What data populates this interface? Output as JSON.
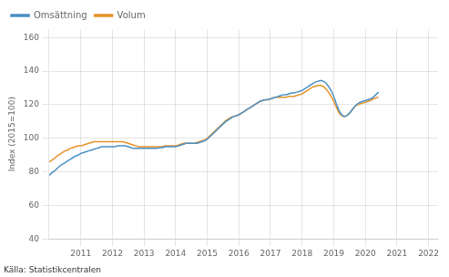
{
  "chart_data": {
    "type": "line",
    "ylabel": "Index (2015=100)",
    "source": "Källa: Statistikcentralen",
    "x": [
      2010,
      2010.083333,
      2010.166667,
      2010.25,
      2010.333333,
      2010.416667,
      2010.5,
      2010.583333,
      2010.666667,
      2010.75,
      2010.833333,
      2010.916667,
      2011,
      2011.083333,
      2011.166667,
      2011.25,
      2011.333333,
      2011.416667,
      2011.5,
      2011.583333,
      2011.666667,
      2011.75,
      2011.833333,
      2011.916667,
      2012,
      2012.083333,
      2012.166667,
      2012.25,
      2012.333333,
      2012.416667,
      2012.5,
      2012.583333,
      2012.666667,
      2012.75,
      2012.833333,
      2012.916667,
      2013,
      2013.083333,
      2013.166667,
      2013.25,
      2013.333333,
      2013.416667,
      2013.5,
      2013.583333,
      2013.666667,
      2013.75,
      2013.833333,
      2013.916667,
      2014,
      2014.083333,
      2014.166667,
      2014.25,
      2014.333333,
      2014.416667,
      2014.5,
      2014.583333,
      2014.666667,
      2014.75,
      2014.833333,
      2014.916667,
      2015,
      2015.083333,
      2015.166667,
      2015.25,
      2015.333333,
      2015.416667,
      2015.5,
      2015.583333,
      2015.666667,
      2015.75,
      2015.833333,
      2015.916667,
      2016,
      2016.083333,
      2016.166667,
      2016.25,
      2016.333333,
      2016.416667,
      2016.5,
      2016.583333,
      2016.666667,
      2016.75,
      2016.833333,
      2016.916667,
      2017,
      2017.083333,
      2017.166667,
      2017.25,
      2017.333333,
      2017.416667,
      2017.5,
      2017.583333,
      2017.666667,
      2017.75,
      2017.833333,
      2017.916667,
      2018,
      2018.083333,
      2018.166667,
      2018.25,
      2018.333333,
      2018.416667,
      2018.5,
      2018.583333,
      2018.666667,
      2018.75,
      2018.833333,
      2018.916667,
      2019,
      2019.083333,
      2019.166667,
      2019.25,
      2019.333333,
      2019.416667,
      2019.5,
      2019.583333,
      2019.666667,
      2019.75,
      2019.833333,
      2019.916667,
      2020,
      2020.083333,
      2020.166667,
      2020.25,
      2020.333333,
      2020.416667
    ],
    "series": [
      {
        "name": "Omsättning",
        "color": "#4a90c4",
        "values": [
          78.0,
          79.5,
          80.5,
          82.0,
          83.5,
          84.5,
          85.5,
          86.5,
          87.5,
          88.5,
          89.5,
          90.0,
          91.0,
          91.5,
          92.0,
          92.5,
          93.0,
          93.5,
          94.0,
          94.5,
          95.0,
          95.0,
          95.0,
          95.0,
          95.0,
          95.0,
          95.5,
          95.5,
          95.5,
          95.5,
          95.0,
          94.5,
          94.0,
          94.0,
          94.0,
          94.0,
          94.0,
          94.0,
          94.0,
          94.0,
          94.0,
          94.0,
          94.5,
          94.5,
          95.0,
          95.0,
          95.0,
          95.0,
          95.0,
          95.5,
          96.0,
          96.5,
          97.0,
          97.0,
          97.0,
          97.0,
          97.0,
          97.5,
          98.0,
          98.5,
          99.5,
          101.0,
          102.5,
          104.0,
          105.5,
          107.0,
          108.5,
          110.0,
          111.0,
          112.0,
          113.0,
          113.5,
          114.0,
          115.0,
          116.0,
          117.0,
          118.0,
          119.0,
          120.0,
          121.0,
          122.0,
          122.5,
          123.0,
          123.0,
          123.5,
          124.0,
          124.5,
          125.0,
          125.5,
          126.0,
          126.0,
          126.5,
          127.0,
          127.0,
          127.5,
          128.0,
          128.5,
          129.5,
          130.5,
          131.5,
          132.5,
          133.5,
          134.0,
          134.5,
          134.0,
          133.0,
          131.0,
          128.5,
          125.0,
          120.5,
          116.5,
          114.0,
          113.0,
          113.5,
          115.0,
          117.0,
          119.0,
          120.5,
          121.5,
          122.0,
          122.5,
          123.0,
          123.5,
          124.5,
          126.0,
          127.5
        ]
      },
      {
        "name": "Volum",
        "color": "#e8922a",
        "values": [
          86.0,
          87.0,
          88.0,
          89.5,
          90.5,
          91.5,
          92.5,
          93.0,
          94.0,
          94.5,
          95.0,
          95.5,
          95.5,
          96.0,
          96.5,
          97.0,
          97.5,
          98.0,
          98.0,
          98.0,
          98.0,
          98.0,
          98.0,
          98.0,
          98.0,
          98.0,
          98.0,
          98.0,
          98.0,
          97.5,
          97.0,
          96.5,
          96.0,
          95.5,
          95.0,
          95.0,
          95.0,
          95.0,
          95.0,
          95.0,
          95.0,
          95.0,
          95.0,
          95.0,
          95.5,
          95.5,
          95.5,
          95.5,
          95.5,
          96.0,
          96.5,
          97.0,
          97.0,
          97.0,
          97.0,
          97.0,
          97.5,
          98.0,
          98.5,
          99.0,
          100.0,
          101.5,
          103.0,
          104.5,
          106.0,
          107.5,
          109.0,
          110.5,
          111.5,
          112.5,
          113.0,
          113.5,
          114.0,
          115.0,
          116.0,
          117.0,
          118.0,
          119.0,
          120.0,
          121.0,
          122.0,
          122.5,
          123.0,
          123.0,
          123.5,
          124.0,
          124.5,
          124.5,
          124.5,
          124.5,
          124.5,
          125.0,
          125.0,
          125.0,
          125.5,
          126.0,
          126.5,
          127.5,
          128.5,
          129.5,
          130.5,
          131.0,
          131.5,
          131.5,
          131.0,
          129.5,
          127.5,
          125.0,
          122.0,
          118.5,
          115.0,
          113.5,
          113.0,
          113.5,
          115.0,
          117.0,
          119.0,
          120.0,
          120.5,
          121.0,
          121.5,
          122.0,
          122.5,
          123.5,
          124.0,
          124.5
        ]
      }
    ],
    "xlim": [
      2010.0,
      2022.3
    ],
    "xticks": [
      2011,
      2012,
      2013,
      2014,
      2015,
      2016,
      2017,
      2018,
      2019,
      2020,
      2021,
      2022
    ],
    "ylim": [
      40,
      165
    ],
    "yticks": [
      40,
      60,
      80,
      100,
      120,
      140,
      160
    ],
    "grid": true,
    "legend": "upper left"
  }
}
